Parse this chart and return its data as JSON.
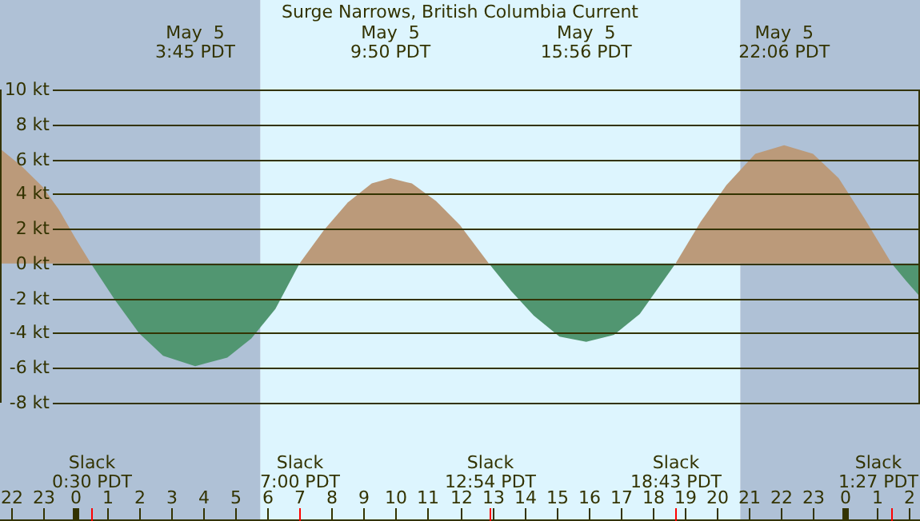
{
  "chart_data": {
    "type": "area",
    "title": "Surge Narrows, British Columbia Current",
    "x": [
      "--05-04T21:40",
      "--05-04T22:20",
      "--05-04T23:00",
      "--05-04T23:30",
      "--05-05T00:00",
      "--05-05T00:30",
      "--05-05T01:15",
      "--05-05T02:00",
      "--05-05T02:45",
      "--05-05T03:45",
      "--05-05T04:45",
      "--05-05T05:30",
      "--05-05T06:15",
      "--05-05T07:00",
      "--05-05T07:45",
      "--05-05T08:30",
      "--05-05T09:15",
      "--05-05T09:50",
      "--05-05T10:30",
      "--05-05T11:15",
      "--05-05T12:00",
      "--05-05T12:54",
      "--05-05T13:36",
      "--05-05T14:18",
      "--05-05T15:06",
      "--05-05T15:56",
      "--05-05T16:48",
      "--05-05T17:36",
      "--05-05T18:43",
      "--05-05T19:30",
      "--05-05T20:18",
      "--05-05T21:12",
      "--05-05T22:06",
      "--05-05T23:00",
      "--05-05T23:48",
      "--05-06T00:36",
      "--05-06T01:27",
      "--05-06T01:54",
      "--05-06T02:20"
    ],
    "series": [
      {
        "color": "#bb9a7a",
        "values": [
          6.6,
          5.6,
          4.4,
          3.1,
          1.5,
          0,
          null,
          null,
          null,
          null,
          null,
          null,
          null,
          0,
          1.9,
          3.5,
          4.6,
          4.9,
          4.6,
          3.6,
          2.2,
          0,
          null,
          null,
          null,
          null,
          null,
          null,
          0,
          2.4,
          4.5,
          6.3,
          6.8,
          6.3,
          4.9,
          2.6,
          0,
          null,
          null
        ]
      },
      {
        "color": "#519671",
        "values": [
          null,
          null,
          null,
          null,
          null,
          0,
          -2.1,
          -4.0,
          -5.3,
          -5.9,
          -5.4,
          -4.3,
          -2.6,
          0,
          null,
          null,
          null,
          null,
          null,
          null,
          null,
          0,
          -1.6,
          -3.0,
          -4.2,
          -4.5,
          -4.1,
          -2.9,
          0,
          null,
          null,
          null,
          null,
          null,
          null,
          null,
          0,
          -1.0,
          -1.9
        ]
      }
    ],
    "xlim": [
      "--05-04T21:40",
      "--05-06T02:20"
    ],
    "xticks": [
      {
        "value": "--05-04T22:00",
        "label": "22"
      },
      {
        "value": "--05-04T23:00",
        "label": "23"
      },
      {
        "value": "--05-05T00:00",
        "label": "0"
      },
      {
        "value": "--05-05T01:00",
        "label": "1"
      },
      {
        "value": "--05-05T02:00",
        "label": "2"
      },
      {
        "value": "--05-05T03:00",
        "label": "3"
      },
      {
        "value": "--05-05T04:00",
        "label": "4"
      },
      {
        "value": "--05-05T05:00",
        "label": "5"
      },
      {
        "value": "--05-05T06:00",
        "label": "6"
      },
      {
        "value": "--05-05T07:00",
        "label": "7"
      },
      {
        "value": "--05-05T08:00",
        "label": "8"
      },
      {
        "value": "--05-05T09:00",
        "label": "9"
      },
      {
        "value": "--05-05T10:00",
        "label": "10"
      },
      {
        "value": "--05-05T11:00",
        "label": "11"
      },
      {
        "value": "--05-05T12:00",
        "label": "12"
      },
      {
        "value": "--05-05T13:00",
        "label": "13"
      },
      {
        "value": "--05-05T14:00",
        "label": "14"
      },
      {
        "value": "--05-05T15:00",
        "label": "15"
      },
      {
        "value": "--05-05T16:00",
        "label": "16"
      },
      {
        "value": "--05-05T17:00",
        "label": "17"
      },
      {
        "value": "--05-05T18:00",
        "label": "18"
      },
      {
        "value": "--05-05T19:00",
        "label": "19"
      },
      {
        "value": "--05-05T20:00",
        "label": "20"
      },
      {
        "value": "--05-05T21:00",
        "label": "21"
      },
      {
        "value": "--05-05T22:00",
        "label": "22"
      },
      {
        "value": "--05-05T23:00",
        "label": "23"
      },
      {
        "value": "--05-06T00:00",
        "label": "0"
      },
      {
        "value": "--05-06T01:00",
        "label": "1"
      },
      {
        "value": "--05-06T02:00",
        "label": "2"
      }
    ],
    "ylim": [
      -8,
      10
    ],
    "yticks": [
      {
        "value": -8,
        "label": "-8 kt"
      },
      {
        "value": -6,
        "label": "-6 kt"
      },
      {
        "value": -4,
        "label": "-4 kt"
      },
      {
        "value": -2,
        "label": "-2 kt"
      },
      {
        "value": 0,
        "label": "0 kt"
      },
      {
        "value": 2,
        "label": "2 kt"
      },
      {
        "value": 4,
        "label": "4 kt"
      },
      {
        "value": 6,
        "label": "6 kt"
      },
      {
        "value": 8,
        "label": "8 kt"
      },
      {
        "value": 10,
        "label": "10 kt"
      }
    ],
    "grid": "y",
    "legend": false,
    "bands": [
      {
        "axis": "x",
        "from": "--05-04T21:40",
        "to": "--05-05T05:47",
        "color": "#afc1d6"
      },
      {
        "axis": "x",
        "from": "--05-05T05:47",
        "to": "--05-05T20:44",
        "color": "#ddf5fe"
      },
      {
        "axis": "x",
        "from": "--05-05T20:44",
        "to": "--05-06T02:20",
        "color": "#afc1d6"
      }
    ],
    "ref_lines": [
      {
        "axis": "x",
        "value": "--05-05T00:30",
        "label": "Slack\n0:30 PDT",
        "color": "#ff0000"
      },
      {
        "axis": "x",
        "value": "--05-05T07:00",
        "label": "Slack\n7:00 PDT",
        "color": "#ff0000"
      },
      {
        "axis": "x",
        "value": "--05-05T12:54",
        "label": "Slack\n12:54 PDT",
        "color": "#ff0000"
      },
      {
        "axis": "x",
        "value": "--05-05T18:43",
        "label": "Slack\n18:43 PDT",
        "color": "#ff0000"
      },
      {
        "axis": "x",
        "value": "--05-06T01:27",
        "label": "Slack\n1:27 PDT",
        "color": "#ff0000"
      }
    ],
    "x2lim": [
      "--05-04T21:40",
      "--05-06T02:20"
    ],
    "x2ticks": [
      {
        "value": "--05-05T03:45",
        "label": "May  5\n3:45 PDT"
      },
      {
        "value": "--05-05T09:50",
        "label": "May  5\n9:50 PDT"
      },
      {
        "value": "--05-05T15:56",
        "label": "May  5\n15:56 PDT"
      },
      {
        "value": "--05-05T22:06",
        "label": "May  5\n22:06 PDT"
      }
    ]
  }
}
